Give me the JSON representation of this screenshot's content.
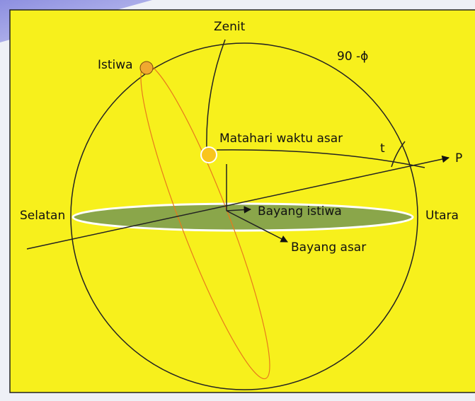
{
  "labels": {
    "zenith": "Zenit",
    "istiwa": "Istiwa",
    "angle": "90 -ϕ",
    "sun": "Matahari waktu asar",
    "t": "t",
    "pole": "P",
    "south": "Selatan",
    "north": "Utara",
    "shadow_istiwa": "Bayang istiwa",
    "shadow_asar": "Bayang asar"
  }
}
